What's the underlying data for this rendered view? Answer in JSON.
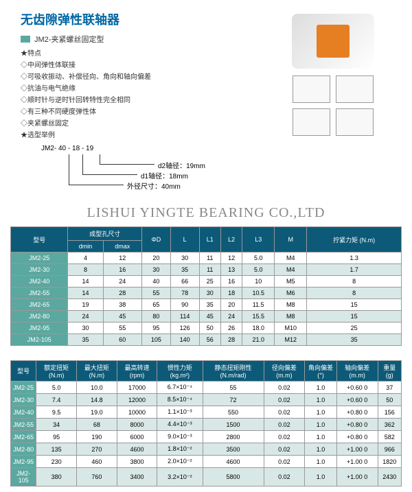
{
  "header": {
    "title": "无齿隙弹性联轴器",
    "subtitle": "JM2-夹紧螺丝固定型",
    "star_features": "★特点",
    "features": [
      "◇中间弹性体联接",
      "◇可吸收振动、补偿径向、角向和轴向偏差",
      "◇抗油与电气绝缘",
      "◇顺时针与逆时针回转特性完全相同",
      "◇有三种不同硬度弹性体",
      "◇夹紧螺丝固定"
    ],
    "star_example": "★选型举例",
    "example_model": "JM2- 40 - 18 - 19",
    "example_d2": "d2轴径：19mm",
    "example_d1": "d1轴径：18mm",
    "example_outer": "外径尺寸：40mm"
  },
  "watermark": "LISHUI YINGTE BEARING CO.,LTD",
  "table1": {
    "headers": [
      "型号",
      "成型孔尺寸",
      "ΦD",
      "L",
      "L1",
      "L2",
      "L3",
      "M",
      "拧紧力矩 (N.m)"
    ],
    "subheaders": [
      "dmin",
      "dmax"
    ],
    "rows": [
      [
        "JM2-25",
        "4",
        "12",
        "20",
        "30",
        "11",
        "12",
        "5.0",
        "M4",
        "1.3"
      ],
      [
        "JM2-30",
        "8",
        "16",
        "30",
        "35",
        "11",
        "13",
        "5.0",
        "M4",
        "1.7"
      ],
      [
        "JM2-40",
        "14",
        "24",
        "40",
        "66",
        "25",
        "16",
        "10",
        "M5",
        "8"
      ],
      [
        "JM2-55",
        "14",
        "28",
        "55",
        "78",
        "30",
        "18",
        "10.5",
        "M6",
        "8"
      ],
      [
        "JM2-65",
        "19",
        "38",
        "65",
        "90",
        "35",
        "20",
        "11.5",
        "M8",
        "15"
      ],
      [
        "JM2-80",
        "24",
        "45",
        "80",
        "114",
        "45",
        "24",
        "15.5",
        "M8",
        "15"
      ],
      [
        "JM2-95",
        "30",
        "55",
        "95",
        "126",
        "50",
        "26",
        "18.0",
        "M10",
        "25"
      ],
      [
        "JM2-105",
        "35",
        "60",
        "105",
        "140",
        "56",
        "28",
        "21.0",
        "M12",
        "35"
      ]
    ]
  },
  "table2": {
    "headers": [
      "型号",
      "额定扭矩 (N.m)",
      "最大扭矩 (N.m)",
      "最高转速 (rpm)",
      "惯性力矩 (kg.m²)",
      "静态扭矩刚性 (N.m/rad)",
      "径向偏差 (m.m)",
      "角向偏差 (°)",
      "轴向偏差 (m.m)",
      "重量 (g)"
    ],
    "rows": [
      [
        "JM2-25",
        "5.0",
        "10.0",
        "17000",
        "6.7×10⁻⁴",
        "55",
        "0.02",
        "1.0",
        "+0.60 0",
        "37"
      ],
      [
        "JM2-30",
        "7.4",
        "14.8",
        "12000",
        "8.5×10⁻⁴",
        "72",
        "0.02",
        "1.0",
        "+0.60 0",
        "50"
      ],
      [
        "JM2-40",
        "9.5",
        "19.0",
        "10000",
        "1.1×10⁻³",
        "550",
        "0.02",
        "1.0",
        "+0.80 0",
        "156"
      ],
      [
        "JM2-55",
        "34",
        "68",
        "8000",
        "4.4×10⁻³",
        "1500",
        "0.02",
        "1.0",
        "+0.80 0",
        "362"
      ],
      [
        "JM2-65",
        "95",
        "190",
        "6000",
        "9.0×10⁻³",
        "2800",
        "0.02",
        "1.0",
        "+0.80 0",
        "582"
      ],
      [
        "JM2-80",
        "135",
        "270",
        "4600",
        "1.8×10⁻²",
        "3500",
        "0.02",
        "1.0",
        "+1.00 0",
        "966"
      ],
      [
        "JM2-95",
        "230",
        "460",
        "3800",
        "2.0×10⁻²",
        "4600",
        "0.02",
        "1.0",
        "+1.00 0",
        "1820"
      ],
      [
        "JM2-105",
        "380",
        "760",
        "3400",
        "3.2×10⁻²",
        "5800",
        "0.02",
        "1.0",
        "+1.00 0",
        "2430"
      ]
    ]
  },
  "colors": {
    "title": "#0066a4",
    "teal": "#5ba8a0",
    "header_bg": "#0d5a78",
    "alt_row": "#d8e8e6"
  }
}
